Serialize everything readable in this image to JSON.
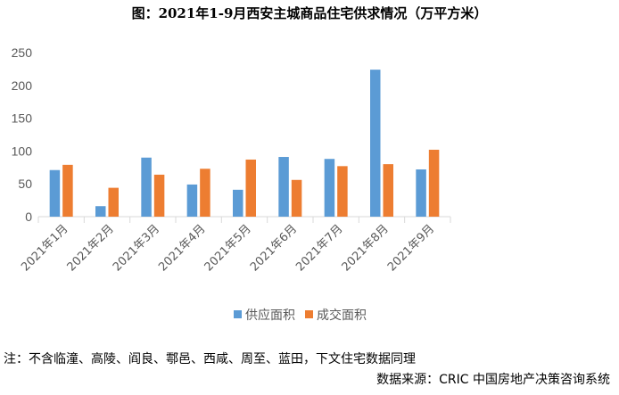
{
  "chart_data": {
    "type": "bar",
    "title": "图：2021年1-9月西安主城商品住宅供求情况（万平方米）",
    "categories": [
      "2021年1月",
      "2021年2月",
      "2021年3月",
      "2021年4月",
      "2021年5月",
      "2021年6月",
      "2021年7月",
      "2021年8月",
      "2021年9月"
    ],
    "series": [
      {
        "name": "供应面积",
        "color": "#5b9bd5",
        "values": [
          71,
          16,
          90,
          49,
          41,
          91,
          88,
          224,
          72
        ]
      },
      {
        "name": "成交面积",
        "color": "#ed7d31",
        "values": [
          79,
          44,
          64,
          73,
          87,
          56,
          77,
          80,
          102
        ]
      }
    ],
    "ylim": [
      0,
      250
    ],
    "yticks": [
      0,
      50,
      100,
      150,
      200,
      250
    ],
    "grid": false,
    "legend": "bottom"
  },
  "note": "注：不含临潼、高陵、阎良、鄠邑、西咸、周至、蓝田，下文住宅数据同理",
  "source": "数据来源：CRIC 中国房地产决策咨询系统"
}
